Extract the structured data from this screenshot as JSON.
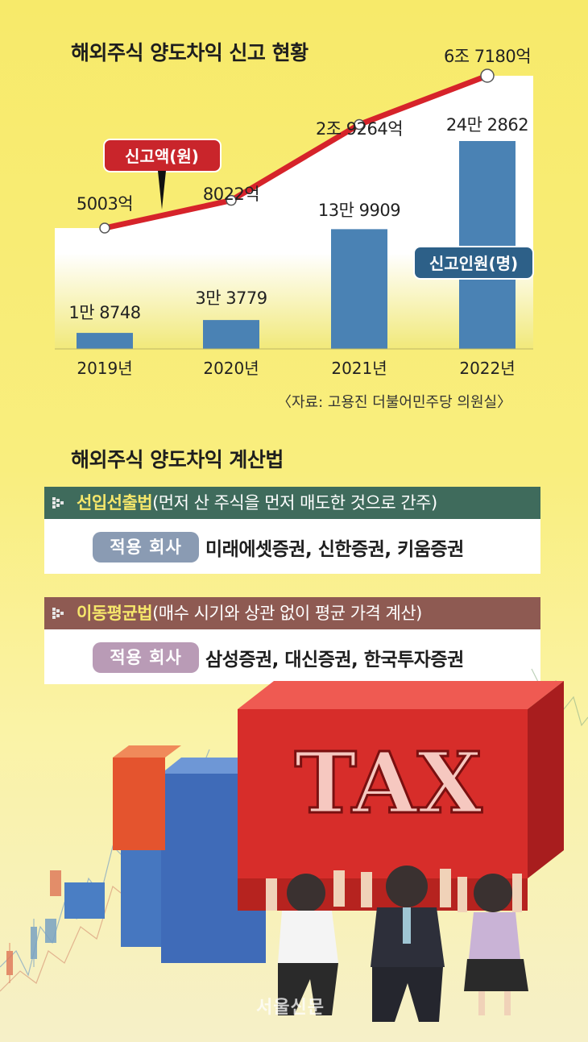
{
  "chart_title": "해외주식 양도차익 신고 현황",
  "source": "〈자료: 고용진 더불어민주당 의원실〉",
  "chart_data": {
    "type": "bar+line",
    "categories": [
      "2019년",
      "2020년",
      "2021년",
      "2022년"
    ],
    "series": [
      {
        "name": "신고인원(명)",
        "type": "bar",
        "values": [
          18748,
          33779,
          139909,
          242862
        ],
        "labels": [
          "1만 8748",
          "3만 3779",
          "13만 9909",
          "24만 2862"
        ],
        "color": "#4a82b4"
      },
      {
        "name": "신고액(원)",
        "type": "line",
        "values": [
          5003,
          8022,
          29264,
          67180
        ],
        "labels": [
          "5003억",
          "8022억",
          "2조 9264억",
          "6조 7180억"
        ],
        "color": "#d6232a"
      }
    ]
  },
  "calc_title": "해외주식 양도차익 계산법",
  "methods": [
    {
      "name": "선입선출법",
      "desc": "(먼저 산 주식을 먼저 매도한 것으로 간주)",
      "label": "적용 회사",
      "companies": "미래에셋증권, 신한증권, 키움증권"
    },
    {
      "name": "이동평균법",
      "desc": "(매수 시기와 상관 없이 평균 가격 계산)",
      "label": "적용 회사",
      "companies": "삼성증권, 대신증권, 한국투자증권"
    }
  ],
  "illustration": {
    "block_text": "TAX",
    "watermark": "서울신문"
  }
}
